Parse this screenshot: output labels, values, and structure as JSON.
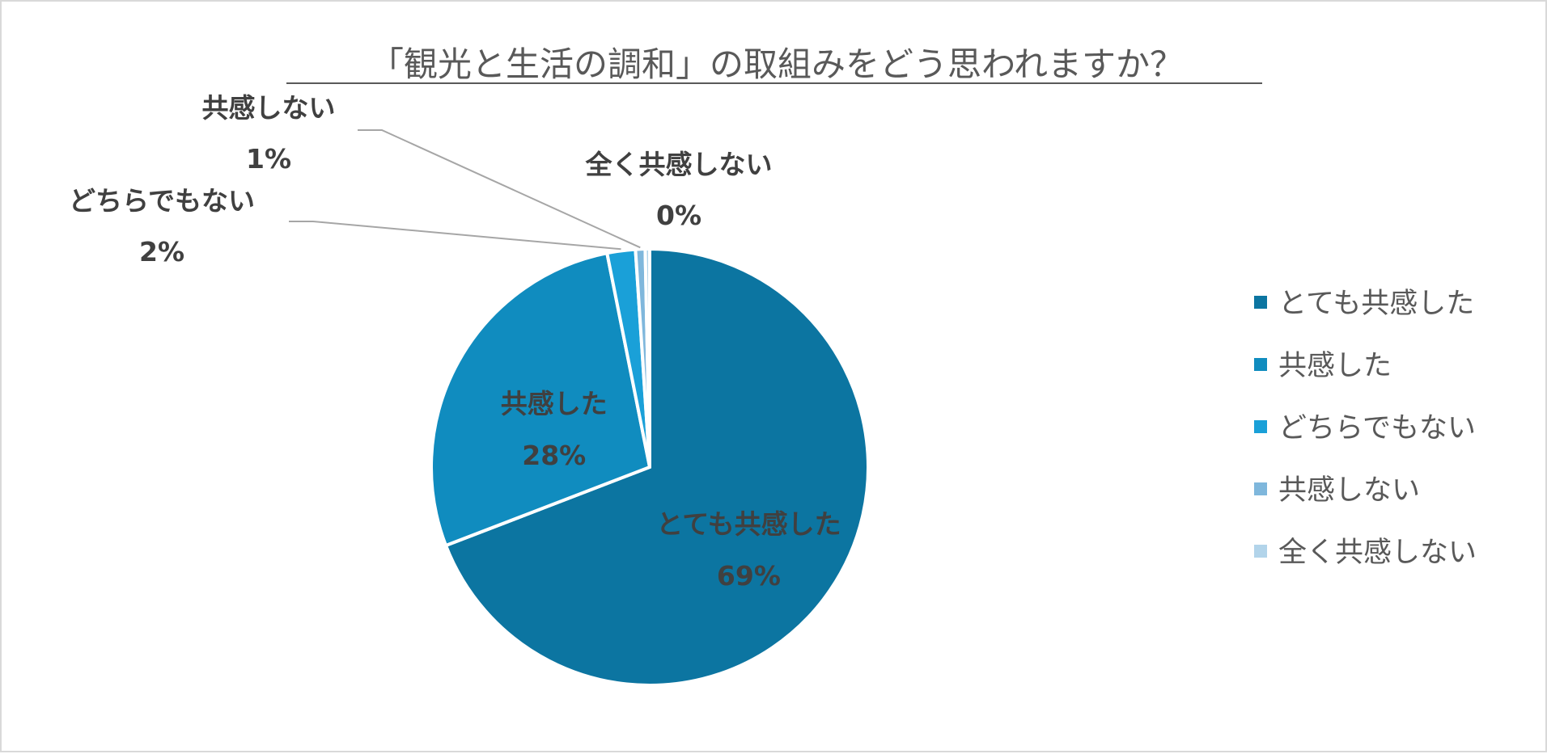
{
  "chart_data": {
    "type": "pie",
    "title": "「観光と生活の調和」の取組みをどう思われますか？",
    "categories": [
      "とても共感した",
      "共感した",
      "どちらでもない",
      "共感しない",
      "全く共感しない"
    ],
    "values": [
      69,
      28,
      2,
      1,
      0
    ],
    "exact_shares": [
      0.6915,
      0.2772,
      0.0209,
      0.0071,
      0.0033
    ],
    "value_labels": [
      "69%",
      "28%",
      "2%",
      "1%",
      "0%"
    ],
    "colors": [
      "#0c75a1",
      "#108cbf",
      "#1aa0d8",
      "#7fb7dc",
      "#b2d4ea"
    ],
    "legend_position": "right",
    "start_angle": "top, clockwise"
  }
}
